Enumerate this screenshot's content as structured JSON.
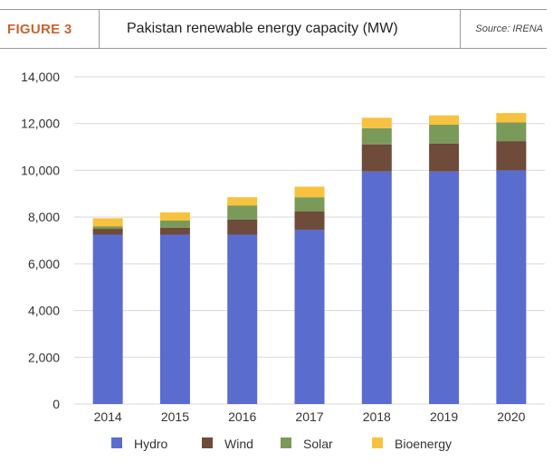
{
  "figure": {
    "label": "FIGURE 3",
    "title": "Pakistan renewable energy capacity (MW)",
    "source": "Source: IRENA"
  },
  "chart_data": {
    "type": "bar",
    "stacked": true,
    "categories": [
      "2014",
      "2015",
      "2016",
      "2017",
      "2018",
      "2019",
      "2020"
    ],
    "series": [
      {
        "name": "Hydro",
        "color": "#5b6ccf",
        "values": [
          7250,
          7250,
          7250,
          7450,
          9950,
          9950,
          10000
        ]
      },
      {
        "name": "Wind",
        "color": "#6e4b3a",
        "values": [
          250,
          300,
          650,
          800,
          1150,
          1200,
          1250
        ]
      },
      {
        "name": "Solar",
        "color": "#7a9a5a",
        "values": [
          100,
          300,
          600,
          600,
          700,
          800,
          800
        ]
      },
      {
        "name": "Bioenergy",
        "color": "#f8c23f",
        "values": [
          350,
          350,
          350,
          450,
          450,
          400,
          400
        ]
      }
    ],
    "ylim": [
      0,
      14000
    ],
    "yticks": [
      "0",
      "2,000",
      "4,000",
      "6,000",
      "8,000",
      "10,000",
      "12,000",
      "14,000"
    ],
    "ytick_values": [
      0,
      2000,
      4000,
      6000,
      8000,
      10000,
      12000,
      14000
    ],
    "grid": true,
    "legend_position": "bottom"
  }
}
